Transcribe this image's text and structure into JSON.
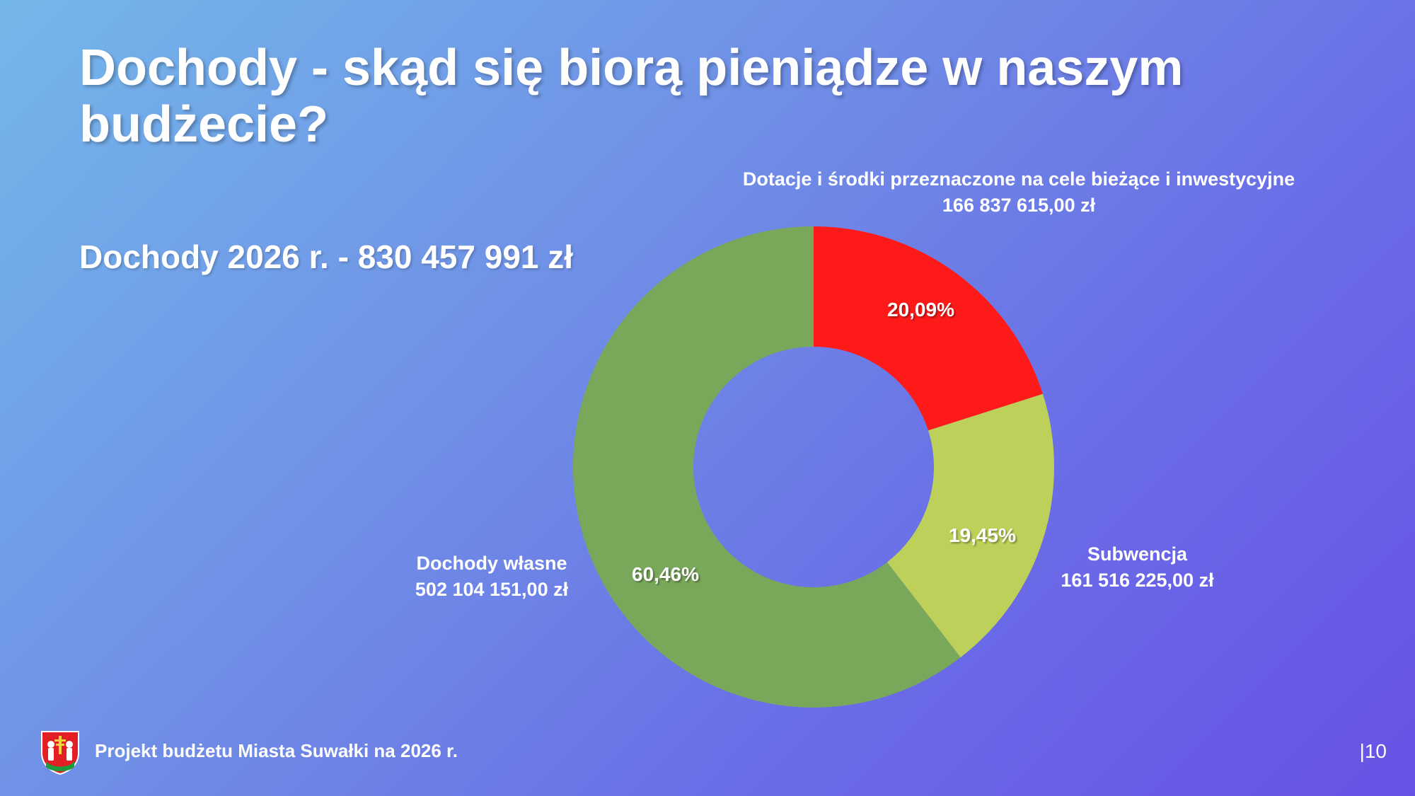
{
  "slide": {
    "title": "Dochody - skąd się biorą pieniądze w naszym budżecie?",
    "total": "Dochody 2026 r. - 830 457 991 zł",
    "footer": "Projekt budżetu Miasta Suwałki na 2026 r.",
    "page": "|10",
    "crest_icon": "city-crest-icon"
  },
  "chart_data": {
    "type": "pie",
    "title": "",
    "slices": [
      {
        "name": "Dotacje i środki przeznaczone na cele bieżące i inwestycyjne",
        "amount": "166 837 615,00 zł",
        "value": 20.09,
        "percent_label": "20,09%",
        "color": "#ff1a1a"
      },
      {
        "name": "Subwencja",
        "amount": "161 516 225,00 zł",
        "value": 19.45,
        "percent_label": "19,45%",
        "color": "#bdd05a"
      },
      {
        "name": "Dochody własne",
        "amount": "502 104 151,00 zł",
        "value": 60.46,
        "percent_label": "60,46%",
        "color": "#79a85a"
      }
    ]
  }
}
